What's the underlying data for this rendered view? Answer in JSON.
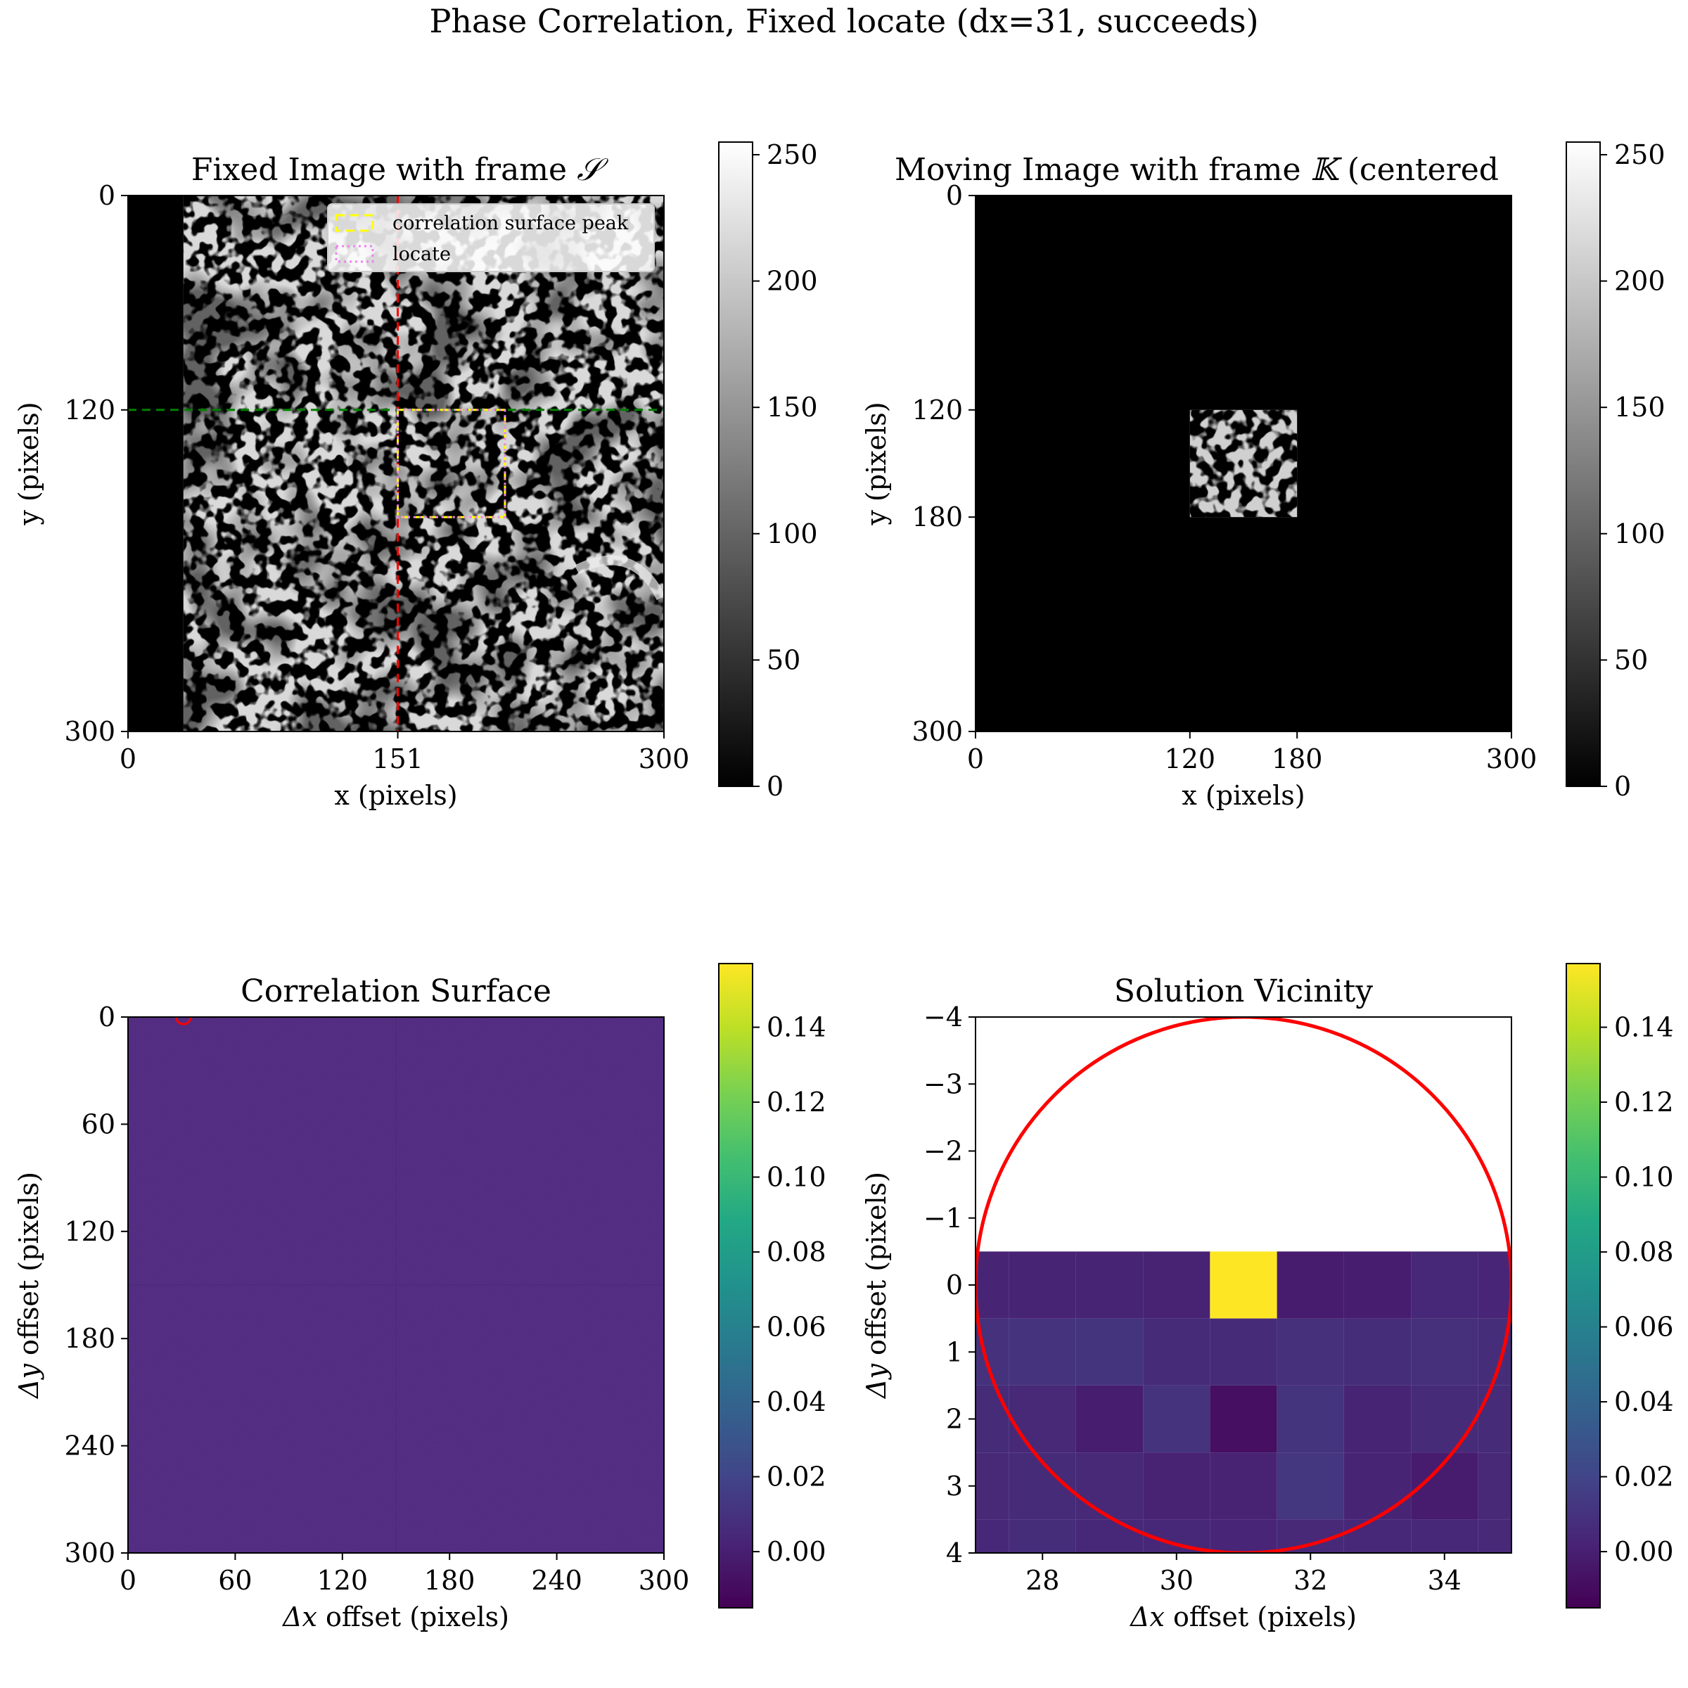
{
  "suptitle": "Phase Correlation, Fixed locate (dx=31, succeeds)",
  "chart_data": [
    {
      "type": "heatmap",
      "id": "fixed",
      "title_prefix": "Fixed Image with frame ",
      "title_symbol": "𝒮",
      "xlabel": "x (pixels)",
      "ylabel": "y (pixels)",
      "xlim": [
        0,
        300
      ],
      "ylim": [
        300,
        0
      ],
      "xticks": [
        {
          "v": 0,
          "label": "0"
        },
        {
          "v": 151,
          "label": "151",
          "color": "#ff0000"
        },
        {
          "v": 300,
          "label": "300"
        }
      ],
      "yticks": [
        {
          "v": 0,
          "label": "0"
        },
        {
          "v": 120,
          "label": "120",
          "color": "#008000"
        },
        {
          "v": 300,
          "label": "300"
        }
      ],
      "image_extent_x": [
        31,
        300
      ],
      "black_band_x": [
        0,
        31
      ],
      "vline": {
        "x": 151,
        "color": "#ff0000",
        "style": "dashed"
      },
      "hline": {
        "y": 120,
        "color": "#008000",
        "style": "dashed"
      },
      "rect_peak": {
        "x": 151,
        "y": 120,
        "w": 60,
        "h": 60,
        "color": "#ffff00",
        "style": "dashed"
      },
      "rect_locate": {
        "x": 151,
        "y": 120,
        "w": 60,
        "h": 60,
        "color": "#ee82ee",
        "style": "dotted"
      },
      "legend": [
        {
          "label": "correlation surface peak",
          "color": "#ffff00",
          "style": "dashed"
        },
        {
          "label": "locate",
          "color": "#ee82ee",
          "style": "dotted"
        }
      ],
      "legend_loc": "upper right",
      "colormap": "gray",
      "colorbar": {
        "min": 0,
        "max": 255,
        "ticks": [
          "0",
          "50",
          "100",
          "150",
          "200",
          "250"
        ],
        "values": [
          0,
          50,
          100,
          150,
          200,
          250
        ]
      }
    },
    {
      "type": "heatmap",
      "id": "moving",
      "title_prefix": "Moving Image with frame ",
      "title_symbol": "𝕂",
      "title_suffix": " (centered",
      "xlabel": "x (pixels)",
      "ylabel": "y (pixels)",
      "xlim": [
        0,
        300
      ],
      "ylim": [
        300,
        0
      ],
      "xticks": [
        {
          "v": 0,
          "label": "0"
        },
        {
          "v": 120,
          "label": "120"
        },
        {
          "v": 180,
          "label": "180"
        },
        {
          "v": 300,
          "label": "300"
        }
      ],
      "yticks": [
        {
          "v": 0,
          "label": "0"
        },
        {
          "v": 120,
          "label": "120"
        },
        {
          "v": 180,
          "label": "180"
        },
        {
          "v": 300,
          "label": "300"
        }
      ],
      "patch_extent": {
        "x": [
          120,
          180
        ],
        "y": [
          120,
          180
        ]
      },
      "colormap": "gray",
      "colorbar": {
        "min": 0,
        "max": 255,
        "ticks": [
          "0",
          "50",
          "100",
          "150",
          "200",
          "250"
        ],
        "values": [
          0,
          50,
          100,
          150,
          200,
          250
        ]
      }
    },
    {
      "type": "heatmap",
      "id": "surface",
      "title": "Correlation Surface",
      "xlabel_sym": "Δx",
      "xlabel_rest": " offset (pixels)",
      "ylabel_sym": "Δy",
      "ylabel_rest": " offset (pixels)",
      "xlim": [
        0,
        300
      ],
      "ylim": [
        300,
        0
      ],
      "xticks": [
        "0",
        "60",
        "120",
        "180",
        "240",
        "300"
      ],
      "xtick_values": [
        0,
        60,
        120,
        180,
        240,
        300
      ],
      "yticks": [
        "0",
        "60",
        "120",
        "180",
        "240",
        "300"
      ],
      "ytick_values": [
        0,
        60,
        120,
        180,
        240,
        300
      ],
      "peak_marker": {
        "x": 31,
        "y": 0,
        "radius": 4,
        "color": "#ff0000"
      },
      "colormap": "viridis",
      "colorbar": {
        "min": -0.015,
        "max": 0.157,
        "ticks": [
          "0.00",
          "0.02",
          "0.04",
          "0.06",
          "0.08",
          "0.10",
          "0.12",
          "0.14"
        ],
        "values": [
          0,
          0.02,
          0.04,
          0.06,
          0.08,
          0.1,
          0.12,
          0.14
        ]
      }
    },
    {
      "type": "heatmap",
      "id": "vicinity",
      "title": "Solution Vicinity",
      "xlabel_sym": "Δx",
      "xlabel_rest": " offset (pixels)",
      "ylabel_sym": "Δy",
      "ylabel_rest": " offset (pixels)",
      "xlim": [
        27,
        35
      ],
      "ylim": [
        4,
        -4
      ],
      "xticks": [
        "28",
        "30",
        "32",
        "34"
      ],
      "xtick_values": [
        28,
        30,
        32,
        34
      ],
      "yticks": [
        "−4",
        "−3",
        "−2",
        "−1",
        "0",
        "1",
        "2",
        "3",
        "4"
      ],
      "ytick_values": [
        -4,
        -3,
        -2,
        -1,
        0,
        1,
        2,
        3,
        4
      ],
      "cell_x": [
        27,
        28,
        29,
        30,
        31,
        32,
        33,
        34,
        35
      ],
      "cell_y": [
        0,
        1,
        2,
        3,
        4
      ],
      "cells": [
        [
          0.002,
          0.002,
          0.002,
          0.001,
          0.157,
          -0.002,
          -0.001,
          0.004,
          0.003
        ],
        [
          0.009,
          0.01,
          0.011,
          0.006,
          0.006,
          0.008,
          0.007,
          0.008,
          0.007
        ],
        [
          0.006,
          0.005,
          -0.001,
          0.01,
          -0.008,
          0.011,
          0.002,
          0.006,
          0.006
        ],
        [
          0.005,
          0.006,
          0.005,
          0.001,
          0.001,
          0.012,
          0.002,
          -0.002,
          0.005
        ],
        [
          0.004,
          0.007,
          0.004,
          0.004,
          0.003,
          0.005,
          0.004,
          0.004,
          0.005
        ]
      ],
      "circle": {
        "cx": 31,
        "cy": 0,
        "r": 4,
        "color": "#ff0000"
      },
      "colormap": "viridis",
      "colorbar": {
        "min": -0.015,
        "max": 0.157,
        "ticks": [
          "0.00",
          "0.02",
          "0.04",
          "0.06",
          "0.08",
          "0.10",
          "0.12",
          "0.14"
        ],
        "values": [
          0,
          0.02,
          0.04,
          0.06,
          0.08,
          0.1,
          0.12,
          0.14
        ]
      }
    }
  ]
}
